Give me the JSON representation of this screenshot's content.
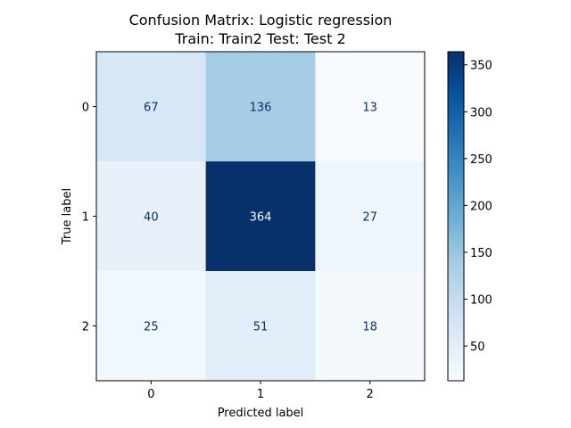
{
  "chart_data": {
    "type": "heatmap",
    "title": "Confusion Matrix: Logistic regression",
    "subtitle": "Train: Train2 Test: Test 2",
    "xlabel": "Predicted label",
    "ylabel": "True label",
    "x_categories": [
      "0",
      "1",
      "2"
    ],
    "y_categories": [
      "0",
      "1",
      "2"
    ],
    "matrix": [
      [
        67,
        136,
        13
      ],
      [
        40,
        364,
        27
      ],
      [
        25,
        51,
        18
      ]
    ],
    "colormap": "Blues",
    "colorbar": {
      "range": [
        13,
        364
      ],
      "ticks": [
        50,
        100,
        150,
        200,
        250,
        300,
        350
      ]
    },
    "colors": {
      "low": "#f7fbff",
      "high": "#08306b",
      "text_dark": "#08306b",
      "text_light": "#f7fbff"
    }
  }
}
